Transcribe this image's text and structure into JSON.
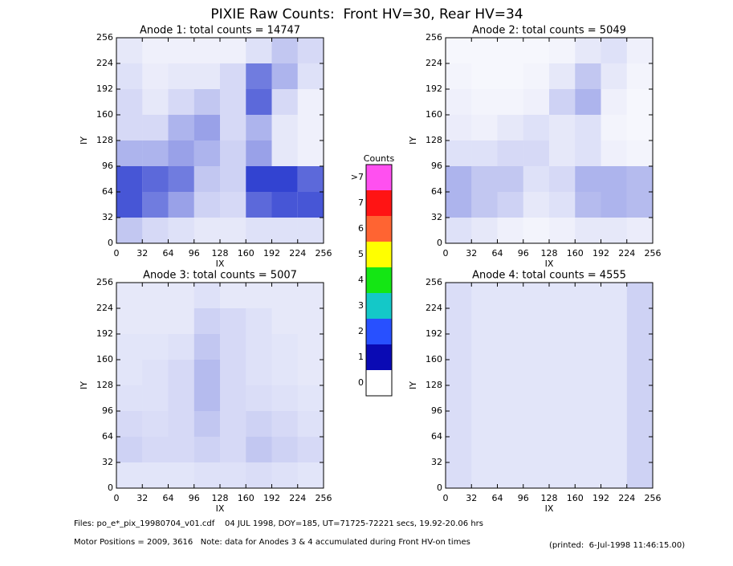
{
  "title": "PIXIE Raw Counts:  Front HV=30, Rear HV=34",
  "chart_data": [
    {
      "type": "heatmap",
      "title": "Anode 1: total counts = 14747",
      "x_label": "IX",
      "y_label": "IY",
      "xlim": [
        0,
        256
      ],
      "ylim": [
        0,
        256
      ],
      "xticks": [
        0,
        32,
        64,
        96,
        128,
        160,
        192,
        224,
        256
      ],
      "yticks": [
        0,
        32,
        64,
        96,
        128,
        160,
        192,
        224,
        256
      ],
      "color": "#0a1ec8",
      "z": [
        [
          150,
          100,
          80,
          60,
          60,
          80,
          80,
          80
        ],
        [
          450,
          350,
          250,
          120,
          100,
          400,
          450,
          450
        ],
        [
          450,
          400,
          350,
          150,
          120,
          500,
          500,
          400
        ],
        [
          200,
          200,
          250,
          200,
          120,
          250,
          60,
          40
        ],
        [
          100,
          100,
          200,
          250,
          100,
          200,
          60,
          40
        ],
        [
          100,
          60,
          100,
          150,
          100,
          400,
          100,
          40
        ],
        [
          80,
          50,
          60,
          60,
          100,
          350,
          200,
          80
        ],
        [
          60,
          40,
          40,
          40,
          40,
          80,
          150,
          100
        ]
      ]
    },
    {
      "type": "heatmap",
      "title": "Anode 2: total counts = 5049",
      "x_label": "IX",
      "y_label": "IY",
      "xlim": [
        0,
        256
      ],
      "ylim": [
        0,
        256
      ],
      "xticks": [
        0,
        32,
        64,
        96,
        128,
        160,
        192,
        224,
        256
      ],
      "yticks": [
        0,
        32,
        64,
        96,
        128,
        160,
        192,
        224,
        256
      ],
      "color": "#0a1ec8",
      "z": [
        [
          80,
          60,
          40,
          30,
          40,
          60,
          60,
          50
        ],
        [
          200,
          150,
          120,
          60,
          80,
          180,
          200,
          180
        ],
        [
          200,
          150,
          150,
          80,
          100,
          200,
          200,
          180
        ],
        [
          80,
          80,
          100,
          100,
          60,
          80,
          40,
          30
        ],
        [
          50,
          40,
          60,
          80,
          60,
          80,
          30,
          20
        ],
        [
          40,
          30,
          30,
          40,
          120,
          200,
          40,
          20
        ],
        [
          30,
          20,
          20,
          30,
          60,
          150,
          60,
          30
        ],
        [
          20,
          20,
          20,
          20,
          30,
          60,
          80,
          40
        ]
      ]
    },
    {
      "type": "heatmap",
      "title": "Anode 3: total counts = 5007",
      "x_label": "IX",
      "y_label": "IY",
      "xlim": [
        0,
        256
      ],
      "ylim": [
        0,
        256
      ],
      "xticks": [
        0,
        32,
        64,
        96,
        128,
        160,
        192,
        224,
        256
      ],
      "yticks": [
        0,
        32,
        64,
        96,
        128,
        160,
        192,
        224,
        256
      ],
      "color": "#0a1ec8",
      "z": [
        [
          70,
          70,
          70,
          80,
          80,
          90,
          80,
          70
        ],
        [
          120,
          100,
          100,
          120,
          100,
          150,
          120,
          100
        ],
        [
          100,
          90,
          100,
          150,
          100,
          120,
          100,
          80
        ],
        [
          80,
          80,
          100,
          180,
          100,
          90,
          80,
          70
        ],
        [
          70,
          80,
          100,
          180,
          100,
          80,
          70,
          60
        ],
        [
          70,
          70,
          80,
          150,
          100,
          80,
          70,
          60
        ],
        [
          60,
          60,
          60,
          120,
          100,
          80,
          60,
          60
        ],
        [
          60,
          60,
          60,
          80,
          60,
          60,
          60,
          60
        ]
      ]
    },
    {
      "type": "heatmap",
      "title": "Anode 4: total counts = 4555",
      "x_label": "IX",
      "y_label": "IY",
      "xlim": [
        0,
        256
      ],
      "ylim": [
        0,
        256
      ],
      "xticks": [
        0,
        32,
        64,
        96,
        128,
        160,
        192,
        224,
        256
      ],
      "yticks": [
        0,
        32,
        64,
        96,
        128,
        160,
        192,
        224,
        256
      ],
      "color": "#0a1ec8",
      "z": [
        [
          90,
          70,
          70,
          70,
          70,
          70,
          70,
          120
        ],
        [
          90,
          70,
          70,
          70,
          70,
          70,
          70,
          120
        ],
        [
          90,
          70,
          70,
          70,
          70,
          70,
          70,
          120
        ],
        [
          90,
          70,
          70,
          70,
          70,
          70,
          70,
          120
        ],
        [
          90,
          70,
          70,
          70,
          70,
          70,
          70,
          120
        ],
        [
          90,
          70,
          70,
          70,
          70,
          70,
          70,
          120
        ],
        [
          90,
          70,
          70,
          70,
          70,
          70,
          70,
          120
        ],
        [
          90,
          70,
          70,
          70,
          70,
          70,
          70,
          120
        ]
      ]
    }
  ],
  "colorbar": {
    "title": "Counts",
    "labels": [
      "0",
      "1",
      "2",
      "3",
      "4",
      "5",
      "6",
      "7",
      ">7"
    ],
    "colors": [
      "#ffffff",
      "#0a0ab4",
      "#2850ff",
      "#14c8c8",
      "#14e614",
      "#ffff00",
      "#ff6432",
      "#ff1414",
      "#ff50f0"
    ]
  },
  "footer": {
    "files": "Files: po_e*_pix_19980704_v01.cdf    04 JUL 1998, DOY=185, UT=71725-72221 secs, 19.92-20.06 hrs",
    "motor": "Motor Positions = 2009, 3616   Note: data for Anodes 3 & 4 accumulated during Front HV-on times",
    "printed": "(printed:  6-Jul-1998 11:46:15.00)"
  }
}
